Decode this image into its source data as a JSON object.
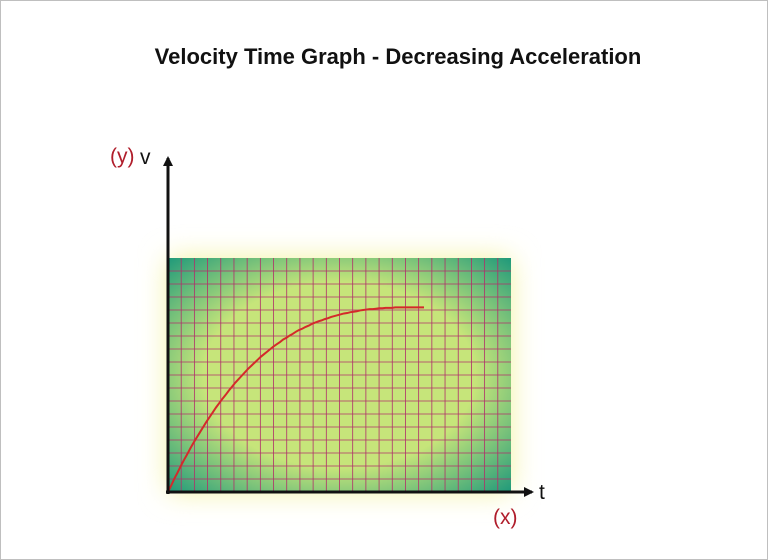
{
  "title": "Velocity Time Graph - Decreasing Acceleration",
  "y_axis": {
    "tag": "(y)",
    "label": "v"
  },
  "x_axis": {
    "tag": "(x)",
    "label": "t"
  },
  "colors": {
    "curve": "#d42a2a",
    "grid_line": "#b0306a",
    "axis": "#111111",
    "tag_text": "#b01d2b",
    "gradient_edge": "#18967a",
    "gradient_center": "#c6e57a"
  },
  "chart_data": {
    "type": "line",
    "title": "Velocity Time Graph - Decreasing Acceleration",
    "xlabel": "t",
    "ylabel": "v",
    "x": [
      0,
      1,
      2,
      3,
      4,
      5,
      6,
      7,
      8,
      9,
      10,
      11,
      12,
      13,
      14,
      15,
      16,
      17,
      18,
      19,
      20,
      21,
      22,
      23,
      24,
      25,
      26,
      27,
      28,
      29,
      30,
      31,
      32,
      33,
      34,
      35,
      36,
      37,
      38,
      39,
      40,
      41,
      42,
      43,
      44,
      45,
      46,
      47,
      48,
      49,
      50,
      51,
      52,
      53,
      54,
      55,
      56,
      57,
      58,
      59,
      60,
      61,
      62,
      63,
      64,
      65,
      66,
      67,
      68,
      69,
      70,
      71,
      72,
      73,
      74,
      75,
      76,
      77,
      78,
      79,
      80
    ],
    "y": [
      0.0,
      1.5,
      3.1,
      4.5,
      6.0,
      7.4,
      8.7,
      10.1,
      11.4,
      12.6,
      13.8,
      15.0,
      16.2,
      17.3,
      18.4,
      19.5,
      20.5,
      21.5,
      22.4,
      23.4,
      24.3,
      25.2,
      26.0,
      26.8,
      27.6,
      28.4,
      29.1,
      29.8,
      30.5,
      31.2,
      31.8,
      32.4,
      33.0,
      33.6,
      34.1,
      34.6,
      35.2,
      35.6,
      36.1,
      36.5,
      37.0,
      37.4,
      37.7,
      38.1,
      38.4,
      38.8,
      39.1,
      39.4,
      39.6,
      39.9,
      40.1,
      40.4,
      40.6,
      40.8,
      41.0,
      41.2,
      41.3,
      41.5,
      41.6,
      41.7,
      41.9,
      42.0,
      42.1,
      42.2,
      42.2,
      42.3,
      42.4,
      42.4,
      42.5,
      42.5,
      42.5,
      42.6,
      42.6,
      42.6,
      42.6,
      42.6,
      42.6,
      42.6,
      42.6,
      42.6,
      42.6
    ],
    "xlim": [
      0,
      80
    ],
    "ylim": [
      0,
      54
    ],
    "grid": true
  }
}
